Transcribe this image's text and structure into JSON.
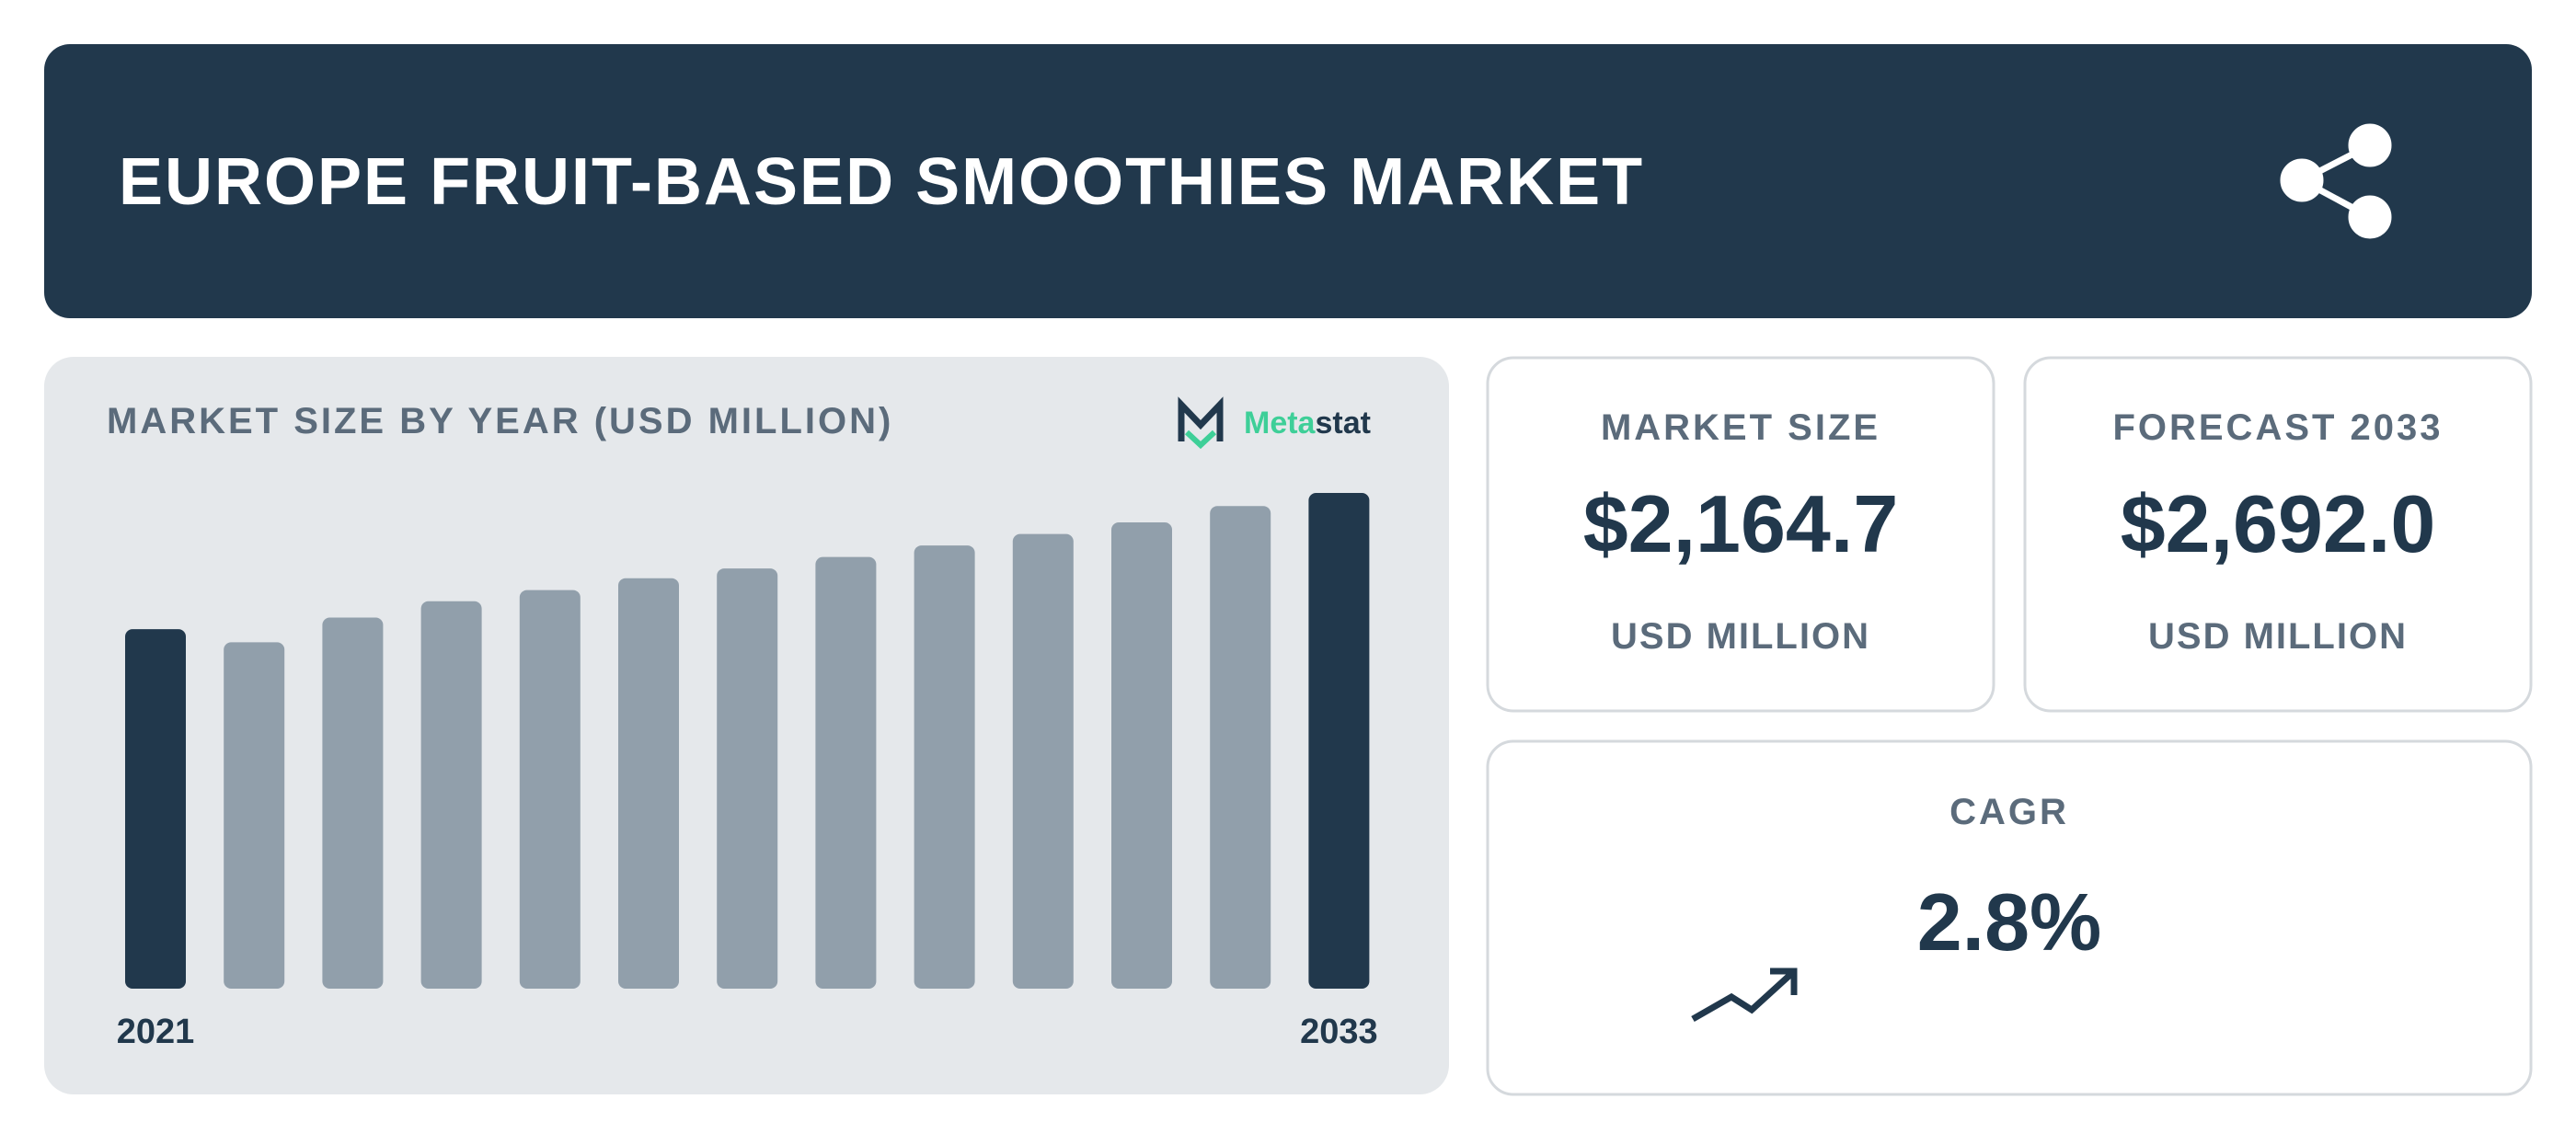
{
  "header": {
    "title": "EUROPE FRUIT-BASED SMOOTHIES MARKET"
  },
  "chart_data": {
    "type": "bar",
    "title": "MARKET SIZE BY YEAR (USD MILLION)",
    "categories": [
      "2021",
      null,
      null,
      null,
      null,
      null,
      null,
      null,
      null,
      null,
      null,
      null,
      "2033"
    ],
    "values": [
      1952,
      1881,
      2015,
      2104,
      2164.7,
      2229,
      2282,
      2344,
      2407,
      2469,
      2532,
      2621,
      2692.0
    ],
    "color": "#919fab",
    "highlight_color": "#21384c"
  },
  "logo": [
    "Meta",
    "stat"
  ],
  "cards": {
    "market_size": {
      "label": "MARKET SIZE",
      "value": "$2,164.7",
      "unit": "USD MILLION"
    },
    "forecast": {
      "label": "FORECAST 2033",
      "value": "$2,692.0",
      "unit": "USD MILLION"
    },
    "cagr": {
      "label": "CAGR",
      "value": "2.8%"
    }
  }
}
